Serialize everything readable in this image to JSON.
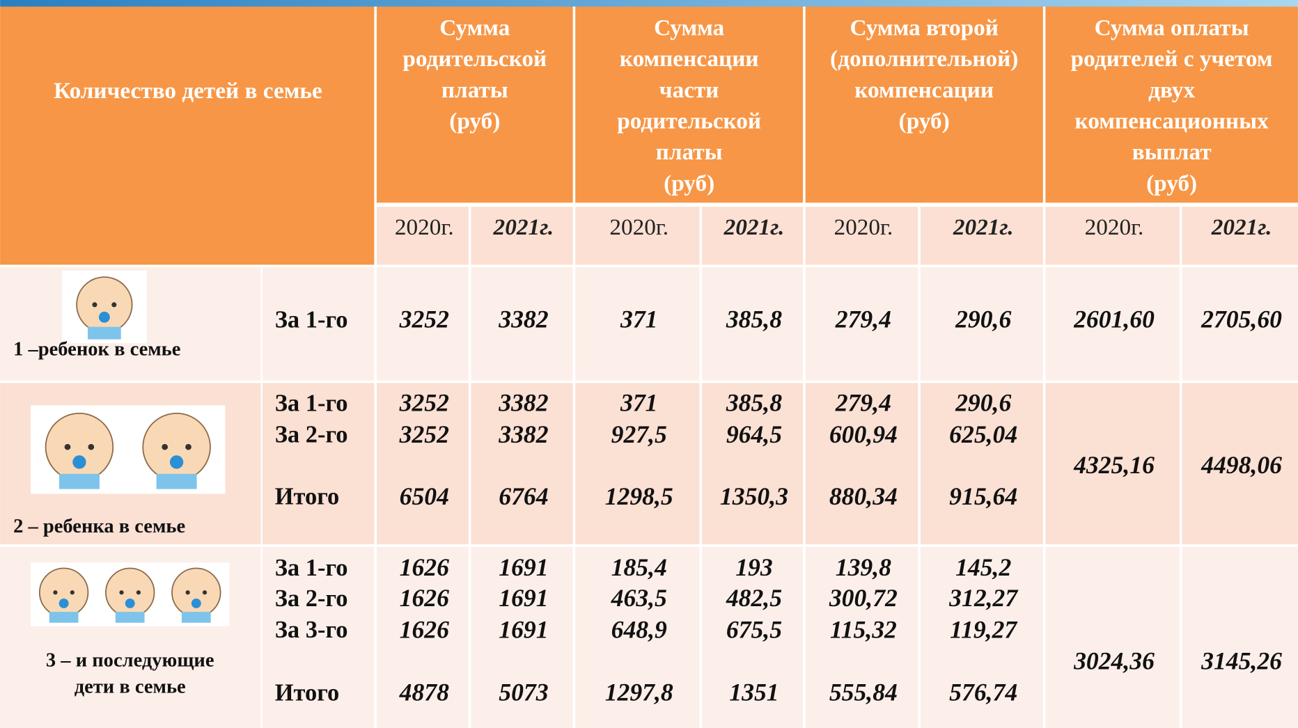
{
  "header": {
    "row_label": "Количество детей в семье",
    "columns": [
      {
        "lines": [
          "Сумма",
          "родительской",
          "платы",
          "(руб)"
        ]
      },
      {
        "lines": [
          "Сумма",
          "компенсации",
          "части",
          "родительской",
          "платы",
          "(руб)"
        ]
      },
      {
        "lines": [
          "Сумма второй",
          "(дополнительной)",
          "компенсации",
          "(руб)"
        ]
      },
      {
        "lines": [
          "Сумма оплаты",
          "родителей с учетом",
          "двух",
          "компенсационных",
          "выплат",
          "(руб)"
        ]
      }
    ],
    "years": [
      "2020г.",
      "2021г."
    ]
  },
  "rows": [
    {
      "label_lines": [
        "1 –ребенок в семье"
      ],
      "lines": [
        {
          "sub": "За 1-го",
          "values": [
            "3252",
            "3382",
            "371",
            "385,8",
            "279,4",
            "290,6"
          ]
        }
      ],
      "total": [
        "2601,60",
        "2705,60"
      ]
    },
    {
      "label_lines": [
        "2 – ребенка в семье"
      ],
      "lines": [
        {
          "sub": "За 1-го",
          "values": [
            "3252",
            "3382",
            "371",
            "385,8",
            "279,4",
            "290,6"
          ]
        },
        {
          "sub": "За 2-го",
          "values": [
            "3252",
            "3382",
            "927,5",
            "964,5",
            "600,94",
            "625,04"
          ]
        },
        {
          "sub": "Итого",
          "values": [
            "6504",
            "6764",
            "1298,5",
            "1350,3",
            "880,34",
            "915,64"
          ]
        }
      ],
      "total": [
        "4325,16",
        "4498,06"
      ]
    },
    {
      "label_lines": [
        "3 – и последующие",
        "дети в семье"
      ],
      "lines": [
        {
          "sub": "За 1-го",
          "values": [
            "1626",
            "1691",
            "185,4",
            "193",
            "139,8",
            "145,2"
          ]
        },
        {
          "sub": "За 2-го",
          "values": [
            "1626",
            "1691",
            "463,5",
            "482,5",
            "300,72",
            "312,27"
          ]
        },
        {
          "sub": "За 3-го",
          "values": [
            "1626",
            "1691",
            "648,9",
            "675,5",
            "115,32",
            "119,27"
          ]
        },
        {
          "sub": "Итого",
          "values": [
            "4878",
            "5073",
            "1297,8",
            "1351",
            "555,84",
            "576,74"
          ]
        }
      ],
      "total": [
        "3024,36",
        "3145,26"
      ]
    }
  ]
}
